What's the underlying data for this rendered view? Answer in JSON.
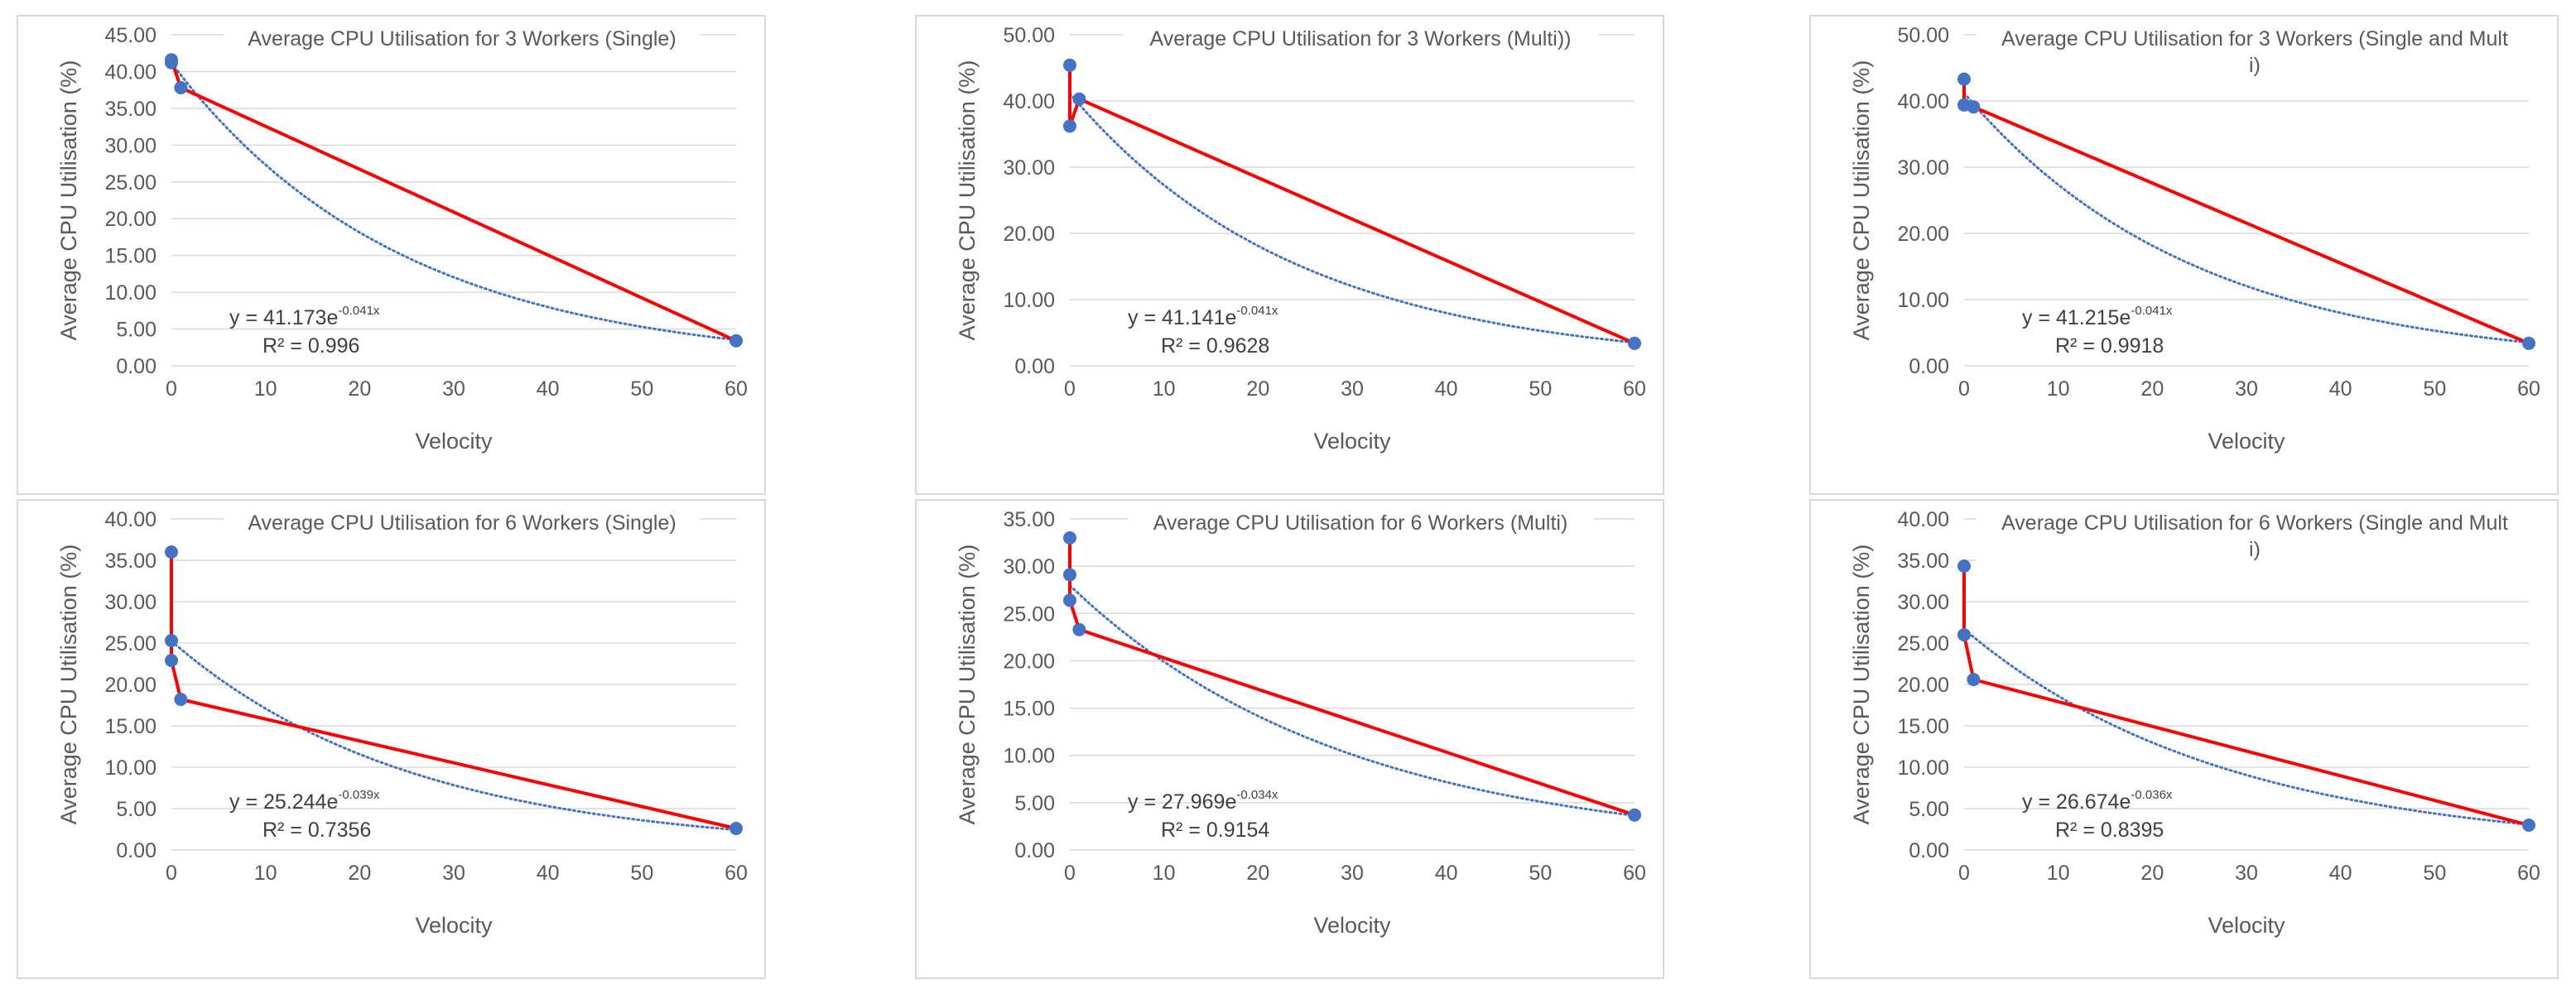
{
  "chart_data": [
    {
      "type": "scatter",
      "title": "Average CPU Utilisation for 3 Workers (Single)",
      "xlabel": "Velocity",
      "ylabel": "Average CPU Utilisation (%)",
      "xlim": [
        0,
        60
      ],
      "ylim": [
        0,
        45
      ],
      "x_ticks": [
        "0",
        "10",
        "20",
        "30",
        "40",
        "50",
        "60"
      ],
      "y_ticks": [
        "0.00",
        "5.00",
        "10.00",
        "15.00",
        "20.00",
        "25.00",
        "30.00",
        "35.00",
        "40.00",
        "45.00"
      ],
      "series": [
        {
          "name": "Average CPU Utilisation",
          "x": [
            0,
            0,
            1,
            60
          ],
          "y": [
            41.2,
            41.6,
            37.8,
            3.4
          ]
        }
      ],
      "trendline": {
        "type": "exponential",
        "a": 41.173,
        "b": -0.041,
        "equation_main": "y = 41.173e",
        "equation_exp": "-0.041x",
        "r2_label": "R² = 0.996"
      },
      "grid": true,
      "colors": {
        "line": "#ff0000",
        "marker": "#4472c4",
        "trend": "#4472c4"
      }
    },
    {
      "type": "scatter",
      "title": "Average CPU Utilisation for 3 Workers (Multi))",
      "xlabel": "Velocity",
      "ylabel": "Average CPU Utilisation (%)",
      "xlim": [
        0,
        60
      ],
      "ylim": [
        0,
        50
      ],
      "x_ticks": [
        "0",
        "10",
        "20",
        "30",
        "40",
        "50",
        "60"
      ],
      "y_ticks": [
        "0.00",
        "10.00",
        "20.00",
        "30.00",
        "40.00",
        "50.00"
      ],
      "series": [
        {
          "name": "Average CPU Utilisation",
          "x": [
            0,
            0,
            1,
            60
          ],
          "y": [
            45.4,
            36.2,
            40.3,
            3.4
          ]
        }
      ],
      "trendline": {
        "type": "exponential",
        "a": 41.141,
        "b": -0.041,
        "equation_main": "y = 41.141e",
        "equation_exp": "-0.041x",
        "r2_label": "R² = 0.9628"
      },
      "grid": true,
      "colors": {
        "line": "#ff0000",
        "marker": "#4472c4",
        "trend": "#4472c4"
      }
    },
    {
      "type": "scatter",
      "title": "Average CPU Utilisation for 3 Workers (Single and Multi)",
      "xlabel": "Velocity",
      "ylabel": "Average CPU Utilisation (%)",
      "xlim": [
        0,
        60
      ],
      "ylim": [
        0,
        50
      ],
      "x_ticks": [
        "0",
        "10",
        "20",
        "30",
        "40",
        "50",
        "60"
      ],
      "y_ticks": [
        "0.00",
        "10.00",
        "20.00",
        "30.00",
        "40.00",
        "50.00"
      ],
      "series": [
        {
          "name": "Average CPU Utilisation",
          "x": [
            0,
            0,
            1,
            60
          ],
          "y": [
            43.3,
            39.4,
            39.1,
            3.4
          ]
        }
      ],
      "trendline": {
        "type": "exponential",
        "a": 41.215,
        "b": -0.041,
        "equation_main": "y = 41.215e",
        "equation_exp": "-0.041x",
        "r2_label": "R² = 0.9918"
      },
      "grid": true,
      "colors": {
        "line": "#ff0000",
        "marker": "#4472c4",
        "trend": "#4472c4"
      }
    },
    {
      "type": "scatter",
      "title": "Average CPU Utilisation for 6 Workers (Single)",
      "xlabel": "Velocity",
      "ylabel": "Average CPU Utilisation (%)",
      "xlim": [
        0,
        60
      ],
      "ylim": [
        0,
        40
      ],
      "x_ticks": [
        "0",
        "10",
        "20",
        "30",
        "40",
        "50",
        "60"
      ],
      "y_ticks": [
        "0.00",
        "5.00",
        "10.00",
        "15.00",
        "20.00",
        "25.00",
        "30.00",
        "35.00",
        "40.00"
      ],
      "series": [
        {
          "name": "Average CPU Utilisation",
          "x": [
            0,
            0,
            0,
            1,
            60
          ],
          "y": [
            36.0,
            25.3,
            22.9,
            18.2,
            2.6
          ]
        }
      ],
      "trendline": {
        "type": "exponential",
        "a": 25.244,
        "b": -0.039,
        "equation_main": "y = 25.244e",
        "equation_exp": "-0.039x",
        "r2_label": "R² = 0.7356"
      },
      "grid": true,
      "colors": {
        "line": "#ff0000",
        "marker": "#4472c4",
        "trend": "#4472c4"
      }
    },
    {
      "type": "scatter",
      "title": "Average CPU Utilisation for 6 Workers (Multi)",
      "xlabel": "Velocity",
      "ylabel": "Average CPU Utilisation (%)",
      "xlim": [
        0,
        60
      ],
      "ylim": [
        0,
        35
      ],
      "x_ticks": [
        "0",
        "10",
        "20",
        "30",
        "40",
        "50",
        "60"
      ],
      "y_ticks": [
        "0.00",
        "5.00",
        "10.00",
        "15.00",
        "20.00",
        "25.00",
        "30.00",
        "35.00"
      ],
      "series": [
        {
          "name": "Average CPU Utilisation",
          "x": [
            0,
            0,
            0,
            1,
            60
          ],
          "y": [
            33.0,
            29.1,
            26.4,
            23.3,
            3.7
          ]
        }
      ],
      "trendline": {
        "type": "exponential",
        "a": 27.969,
        "b": -0.034,
        "equation_main": "y = 27.969e",
        "equation_exp": "-0.034x",
        "r2_label": "R² = 0.9154"
      },
      "grid": true,
      "colors": {
        "line": "#ff0000",
        "marker": "#4472c4",
        "trend": "#4472c4"
      }
    },
    {
      "type": "scatter",
      "title": "Average CPU Utilisation for 6 Workers (Single and Multi)",
      "xlabel": "Velocity",
      "ylabel": "Average CPU Utilisation (%)",
      "xlim": [
        0,
        60
      ],
      "ylim": [
        0,
        40
      ],
      "x_ticks": [
        "0",
        "10",
        "20",
        "30",
        "40",
        "50",
        "60"
      ],
      "y_ticks": [
        "0.00",
        "5.00",
        "10.00",
        "15.00",
        "20.00",
        "25.00",
        "30.00",
        "35.00",
        "40.00"
      ],
      "series": [
        {
          "name": "Average CPU Utilisation",
          "x": [
            0,
            0,
            1,
            60
          ],
          "y": [
            34.3,
            26.0,
            20.6,
            3.0
          ]
        }
      ],
      "trendline": {
        "type": "exponential",
        "a": 26.674,
        "b": -0.036,
        "equation_main": "y = 26.674e",
        "equation_exp": "-0.036x",
        "r2_label": "R² = 0.8395"
      },
      "grid": true,
      "colors": {
        "line": "#ff0000",
        "marker": "#4472c4",
        "trend": "#4472c4"
      }
    }
  ]
}
